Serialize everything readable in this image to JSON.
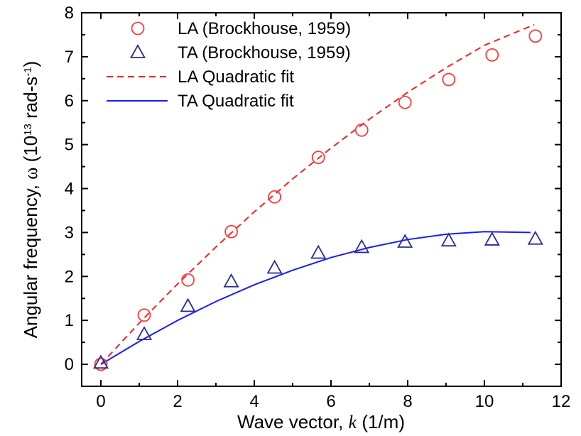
{
  "chart_data": {
    "type": "scatter",
    "xlabel_parts": [
      "Wave vector, ",
      "k",
      " (1/m)"
    ],
    "ylabel_parts": [
      "Angular frequency, ",
      "ω",
      " (10",
      "13",
      " rad-s",
      "-1",
      ")"
    ],
    "xlim": [
      -0.5,
      12
    ],
    "ylim": [
      -0.5,
      8
    ],
    "xticks": [
      0,
      2,
      4,
      6,
      8,
      10,
      12
    ],
    "yticks": [
      0,
      1,
      2,
      3,
      4,
      5,
      6,
      7,
      8
    ],
    "grid": false,
    "legend_position": "top-left",
    "series": [
      {
        "name": "LA (Brockhouse, 1959)",
        "kind": "marker",
        "marker": "circle",
        "color": "#ff3b3b",
        "x": [
          0,
          1.13,
          2.27,
          3.4,
          4.53,
          5.67,
          6.8,
          7.93,
          9.07,
          10.2,
          11.33
        ],
        "y": [
          0,
          1.12,
          1.92,
          3.02,
          3.81,
          4.71,
          5.33,
          5.96,
          6.48,
          7.04,
          7.47
        ]
      },
      {
        "name": "TA (Brockhouse, 1959)",
        "kind": "marker",
        "marker": "triangle",
        "color": "#2b2b8f",
        "x": [
          0,
          1.13,
          2.27,
          3.4,
          4.53,
          5.67,
          6.8,
          7.93,
          9.07,
          10.2,
          11.33
        ],
        "y": [
          0.03,
          0.68,
          1.32,
          1.88,
          2.19,
          2.53,
          2.66,
          2.78,
          2.81,
          2.83,
          2.85
        ]
      },
      {
        "name": "LA Quadratic fit",
        "kind": "line",
        "dash": true,
        "color": "#ff2020",
        "x": [
          0,
          1,
          2,
          3,
          4,
          5,
          6,
          7,
          8,
          9,
          10,
          11.3
        ],
        "y": [
          0,
          0.94,
          1.83,
          2.67,
          3.47,
          4.22,
          4.92,
          5.58,
          6.19,
          6.75,
          7.26,
          7.73
        ]
      },
      {
        "name": "TA Quadratic fit",
        "kind": "line",
        "dash": false,
        "color": "#1a1aff",
        "x": [
          0,
          1,
          2,
          3,
          4,
          5,
          6,
          7,
          8,
          9,
          10,
          11.2
        ],
        "y": [
          0,
          0.52,
          1.0,
          1.43,
          1.81,
          2.14,
          2.43,
          2.66,
          2.84,
          2.96,
          3.02,
          3.0
        ]
      }
    ]
  }
}
